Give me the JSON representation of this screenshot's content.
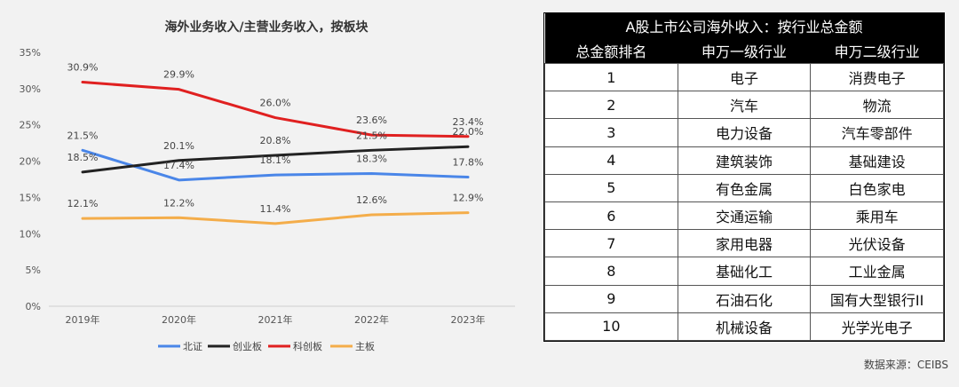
{
  "chart_data": {
    "type": "line",
    "title": "海外业务收入/主营业务收入，按板块",
    "categories": [
      "2019年",
      "2020年",
      "2021年",
      "2022年",
      "2023年"
    ],
    "y_ticks": [
      "35%",
      "30%",
      "25%",
      "20%",
      "15%",
      "10%",
      "5%",
      "0%"
    ],
    "ylim": [
      0,
      35
    ],
    "xlabel": "",
    "ylabel": "",
    "legend_position": "bottom",
    "series": [
      {
        "name": "北证",
        "color": "#4a86e8",
        "values": [
          21.5,
          17.4,
          18.1,
          18.3,
          17.8
        ],
        "labels": [
          "21.5%",
          "17.4%",
          "18.1%",
          "18.3%",
          "17.8%"
        ]
      },
      {
        "name": "创业板",
        "color": "#222222",
        "values": [
          18.5,
          20.1,
          20.8,
          21.5,
          22.0
        ],
        "labels": [
          "18.5%",
          "20.1%",
          "20.8%",
          "21.5%",
          "22.0%"
        ]
      },
      {
        "name": "科创板",
        "color": "#e02020",
        "values": [
          30.9,
          29.9,
          26.0,
          23.6,
          23.4
        ],
        "labels": [
          "30.9%",
          "29.9%",
          "26.0%",
          "23.6%",
          "23.4%"
        ]
      },
      {
        "name": "主板",
        "color": "#f4ad4a",
        "values": [
          12.1,
          12.2,
          11.4,
          12.6,
          12.9
        ],
        "labels": [
          "12.1%",
          "12.2%",
          "11.4%",
          "12.6%",
          "12.9%"
        ]
      }
    ]
  },
  "table": {
    "title": "A股上市公司海外收入：按行业总金额",
    "headers": [
      "总金额排名",
      "申万一级行业",
      "申万二级行业"
    ],
    "rows": [
      [
        "1",
        "电子",
        "消费电子"
      ],
      [
        "2",
        "汽车",
        "物流"
      ],
      [
        "3",
        "电力设备",
        "汽车零部件"
      ],
      [
        "4",
        "建筑装饰",
        "基础建设"
      ],
      [
        "5",
        "有色金属",
        "白色家电"
      ],
      [
        "6",
        "交通运输",
        "乘用车"
      ],
      [
        "7",
        "家用电器",
        "光伏设备"
      ],
      [
        "8",
        "基础化工",
        "工业金属"
      ],
      [
        "9",
        "石油石化",
        "国有大型银行II"
      ],
      [
        "10",
        "机械设备",
        "光学光电子"
      ]
    ]
  },
  "source": "数据来源：CEIBS"
}
